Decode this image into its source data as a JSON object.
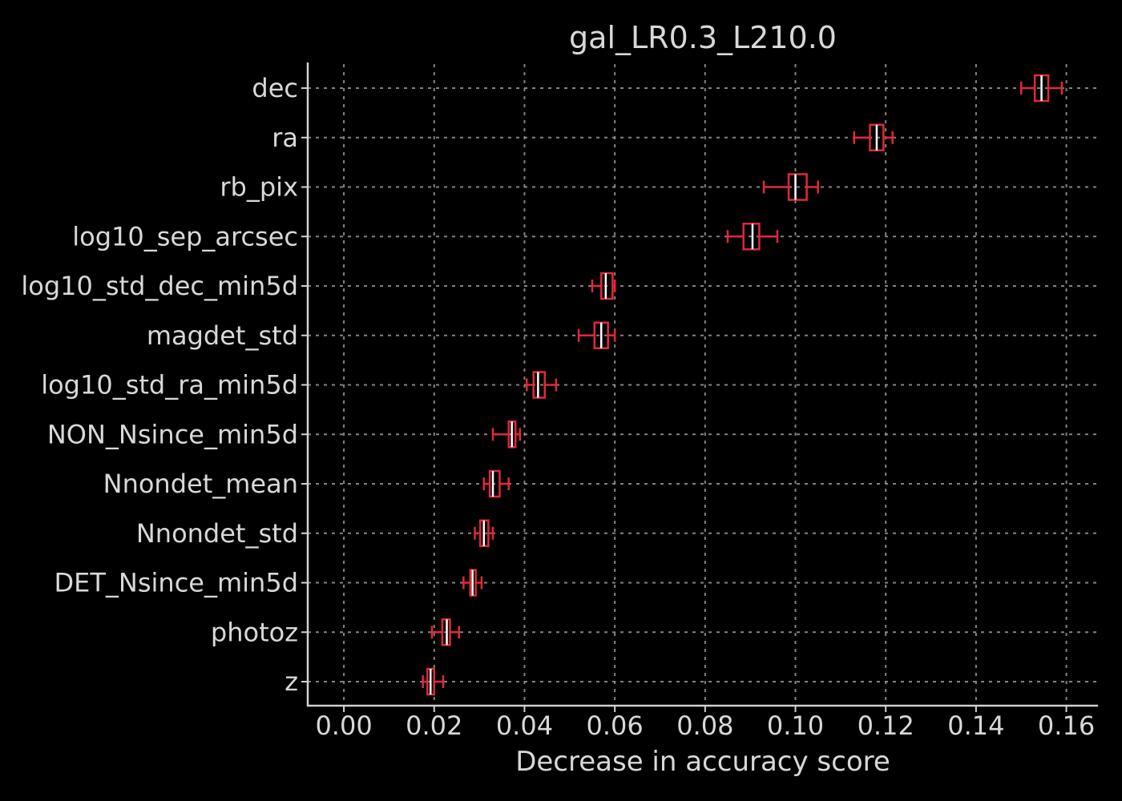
{
  "chart_data": {
    "type": "boxplot-horizontal",
    "title": "gal_LR0.3_L210.0",
    "xlabel": "Decrease in accuracy score",
    "ylabel": "",
    "xlim": [
      -0.008,
      0.167
    ],
    "xticks": [
      "0.00",
      "0.02",
      "0.04",
      "0.06",
      "0.08",
      "0.10",
      "0.12",
      "0.14",
      "0.16"
    ],
    "xtick_values": [
      0.0,
      0.02,
      0.04,
      0.06,
      0.08,
      0.1,
      0.12,
      0.14,
      0.16
    ],
    "grid": true,
    "colors": {
      "box": "#e0293a",
      "median": "#ffffff",
      "text": "#d8d8d8",
      "background": "#000000",
      "grid": "#9a9a9a"
    },
    "features": [
      {
        "name": "dec",
        "whislo": 0.15,
        "q1": 0.153,
        "med": 0.1545,
        "q3": 0.156,
        "whishi": 0.159
      },
      {
        "name": "ra",
        "whislo": 0.113,
        "q1": 0.1165,
        "med": 0.118,
        "q3": 0.1195,
        "whishi": 0.1215
      },
      {
        "name": "rb_pix",
        "whislo": 0.093,
        "q1": 0.0985,
        "med": 0.1,
        "q3": 0.1025,
        "whishi": 0.105
      },
      {
        "name": "log10_sep_arcsec",
        "whislo": 0.085,
        "q1": 0.0885,
        "med": 0.0905,
        "q3": 0.092,
        "whishi": 0.096
      },
      {
        "name": "log10_std_dec_min5d",
        "whislo": 0.055,
        "q1": 0.057,
        "med": 0.058,
        "q3": 0.0595,
        "whishi": 0.06
      },
      {
        "name": "magdet_std",
        "whislo": 0.052,
        "q1": 0.0555,
        "med": 0.057,
        "q3": 0.0585,
        "whishi": 0.06
      },
      {
        "name": "log10_std_ra_min5d",
        "whislo": 0.0405,
        "q1": 0.042,
        "med": 0.043,
        "q3": 0.0445,
        "whishi": 0.047
      },
      {
        "name": "NON_Nsince_min5d",
        "whislo": 0.033,
        "q1": 0.0365,
        "med": 0.0372,
        "q3": 0.038,
        "whishi": 0.039
      },
      {
        "name": "Nnondet_mean",
        "whislo": 0.031,
        "q1": 0.0323,
        "med": 0.033,
        "q3": 0.0345,
        "whishi": 0.0365
      },
      {
        "name": "Nnondet_std",
        "whislo": 0.029,
        "q1": 0.0302,
        "med": 0.031,
        "q3": 0.032,
        "whishi": 0.033
      },
      {
        "name": "DET_Nsince_min5d",
        "whislo": 0.0265,
        "q1": 0.028,
        "med": 0.0285,
        "q3": 0.0292,
        "whishi": 0.0305
      },
      {
        "name": "photoz",
        "whislo": 0.0195,
        "q1": 0.0218,
        "med": 0.0228,
        "q3": 0.0235,
        "whishi": 0.0255
      },
      {
        "name": "z",
        "whislo": 0.0175,
        "q1": 0.0185,
        "med": 0.0192,
        "q3": 0.02,
        "whishi": 0.022
      }
    ]
  }
}
